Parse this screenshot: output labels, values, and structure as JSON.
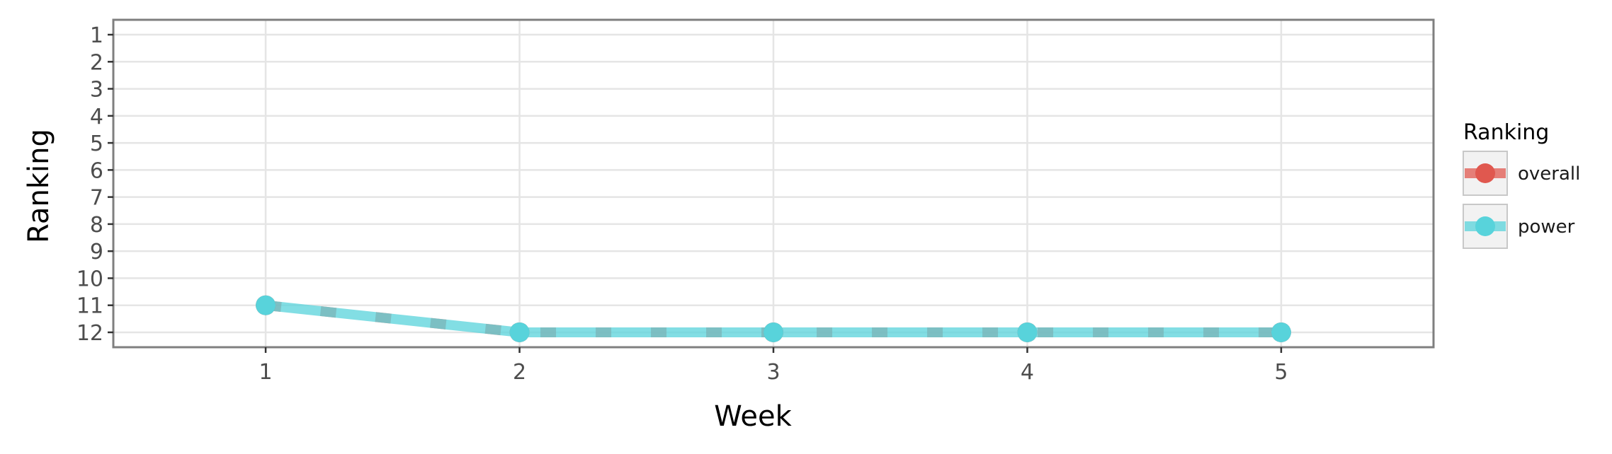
{
  "chart_data": {
    "type": "line",
    "xlabel": "Week",
    "ylabel": "Ranking",
    "x": [
      1,
      2,
      3,
      4,
      5
    ],
    "x_ticks": [
      "1",
      "2",
      "3",
      "4",
      "5"
    ],
    "y_ticks": [
      "1",
      "2",
      "3",
      "4",
      "5",
      "6",
      "7",
      "8",
      "9",
      "10",
      "11",
      "12"
    ],
    "xlim": [
      0.4,
      5.6
    ],
    "ylim": [
      12.55,
      0.45
    ],
    "y_reversed": true,
    "grid": true,
    "legend": {
      "title": "Ranking",
      "position": "right",
      "entries": [
        "overall",
        "power"
      ]
    },
    "series": [
      {
        "name": "overall",
        "values": [
          11,
          12,
          12,
          12,
          12
        ],
        "color": "#E0584F",
        "line_style": "dashed"
      },
      {
        "name": "power",
        "values": [
          11,
          12,
          12,
          12,
          12
        ],
        "color": "#58D3DB",
        "line_style": "solid"
      }
    ]
  }
}
